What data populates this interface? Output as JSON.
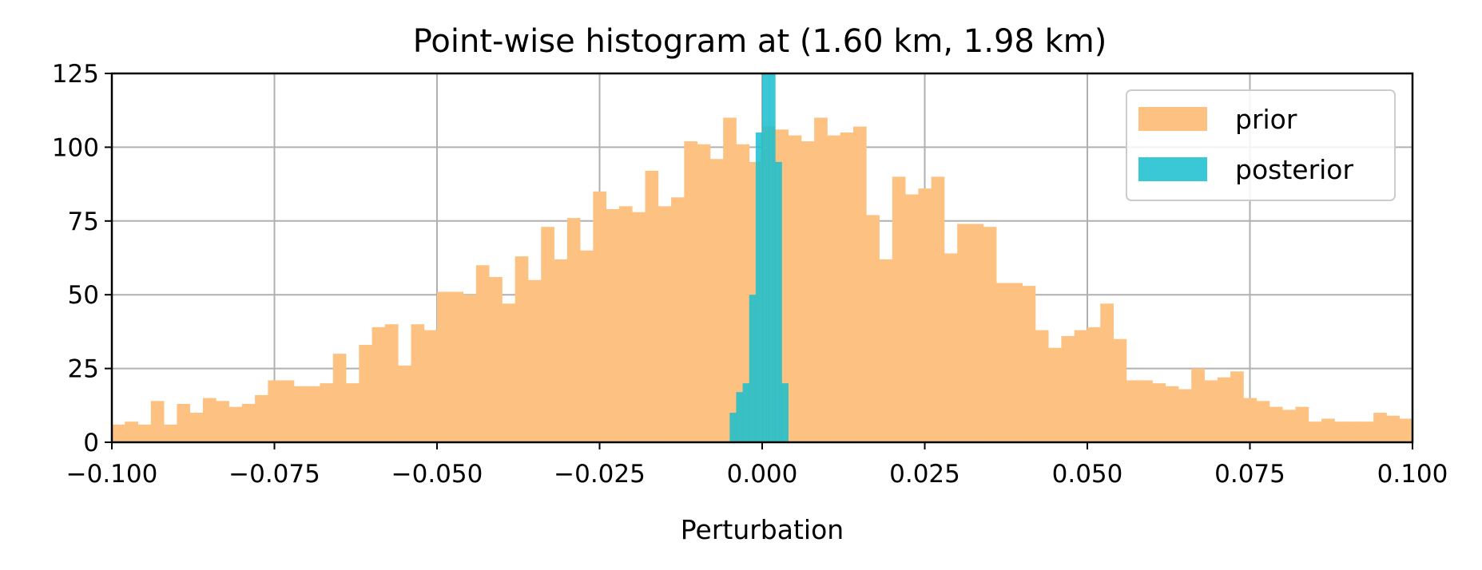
{
  "chart_data": {
    "type": "bar",
    "title": "Point-wise histogram at (1.60 km, 1.98 km)",
    "xlabel": "Perturbation",
    "ylabel": "",
    "xlim": [
      -0.1,
      0.1
    ],
    "ylim": [
      0,
      125
    ],
    "grid": true,
    "legend_position": "top-right",
    "xticks": [
      {
        "value": -0.1,
        "label": "−0.100"
      },
      {
        "value": -0.075,
        "label": "−0.075"
      },
      {
        "value": -0.05,
        "label": "−0.050"
      },
      {
        "value": -0.025,
        "label": "−0.025"
      },
      {
        "value": 0.0,
        "label": "0.000"
      },
      {
        "value": 0.025,
        "label": "0.025"
      },
      {
        "value": 0.05,
        "label": "0.050"
      },
      {
        "value": 0.075,
        "label": "0.075"
      },
      {
        "value": 0.1,
        "label": "0.100"
      }
    ],
    "yticks": [
      {
        "value": 0,
        "label": "0"
      },
      {
        "value": 25,
        "label": "25"
      },
      {
        "value": 50,
        "label": "50"
      },
      {
        "value": 75,
        "label": "75"
      },
      {
        "value": 100,
        "label": "100"
      },
      {
        "value": 125,
        "label": "125"
      }
    ],
    "series": [
      {
        "name": "prior",
        "color": "#fdc282",
        "bin_start": -0.1,
        "bin_width": 0.002,
        "values": [
          6,
          7,
          6,
          14,
          6,
          13,
          10,
          15,
          14,
          12,
          13,
          16,
          21,
          21,
          19,
          19,
          20,
          30,
          20,
          33,
          39,
          40,
          26,
          40,
          38,
          51,
          51,
          50,
          60,
          56,
          47,
          63,
          55,
          73,
          62,
          76,
          65,
          85,
          79,
          80,
          78,
          92,
          80,
          83,
          102,
          101,
          96,
          110,
          101,
          95,
          107,
          106,
          104,
          102,
          110,
          104,
          105,
          107,
          77,
          62,
          90,
          84,
          86,
          90,
          64,
          74,
          74,
          73,
          54,
          54,
          53,
          38,
          32,
          36,
          38,
          39,
          47,
          35,
          21,
          21,
          20,
          19,
          18,
          25,
          21,
          22,
          24,
          15,
          14,
          12,
          11,
          12,
          7,
          8,
          7,
          7,
          7,
          10,
          9,
          8
        ]
      },
      {
        "name": "posterior",
        "color": "#17becf",
        "bin_start": -0.005,
        "bin_width": 0.001,
        "values": [
          10,
          17,
          20,
          50,
          105,
          150,
          130,
          95,
          20
        ]
      }
    ]
  }
}
